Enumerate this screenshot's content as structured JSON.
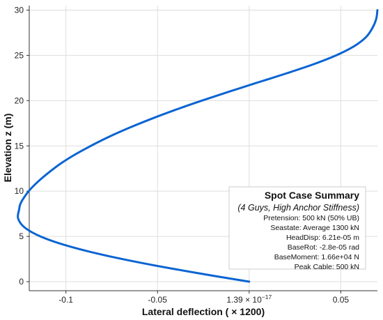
{
  "chart_data": {
    "type": "line",
    "xlabel": "Lateral deflection ( ×  1200)",
    "ylabel": "Elevation z (m)",
    "xlim": [
      -0.12,
      0.07
    ],
    "ylim": [
      -1,
      30.5
    ],
    "x_ticks": [
      {
        "value": -0.1,
        "label": "-0.1"
      },
      {
        "value": -0.05,
        "label": "-0.05"
      },
      {
        "value": 0.0,
        "label": "1.39 × 10",
        "exp": "−17"
      },
      {
        "value": 0.05,
        "label": "0.05"
      }
    ],
    "y_ticks": [
      {
        "value": 0,
        "label": "0"
      },
      {
        "value": 5,
        "label": "5"
      },
      {
        "value": 10,
        "label": "10"
      },
      {
        "value": 15,
        "label": "15"
      },
      {
        "value": 20,
        "label": "20"
      },
      {
        "value": 25,
        "label": "25"
      },
      {
        "value": 30,
        "label": "30"
      }
    ],
    "grid": true,
    "series": [
      {
        "color": "#0a64d2",
        "points": [
          {
            "x": 0.0,
            "y": 0
          },
          {
            "x": -0.0297,
            "y": 1
          },
          {
            "x": -0.0569,
            "y": 2
          },
          {
            "x": -0.0806,
            "y": 3
          },
          {
            "x": -0.0998,
            "y": 4
          },
          {
            "x": -0.1139,
            "y": 5
          },
          {
            "x": -0.1226,
            "y": 6
          },
          {
            "x": -0.1261,
            "y": 7
          },
          {
            "x": -0.1255,
            "y": 8
          },
          {
            "x": -0.125,
            "y": 8.5
          },
          {
            "x": -0.1238,
            "y": 9
          },
          {
            "x": -0.1203,
            "y": 10
          },
          {
            "x": -0.1155,
            "y": 11
          },
          {
            "x": -0.1097,
            "y": 12
          },
          {
            "x": -0.1032,
            "y": 13
          },
          {
            "x": -0.0954,
            "y": 14
          },
          {
            "x": -0.0864,
            "y": 15
          },
          {
            "x": -0.0765,
            "y": 16
          },
          {
            "x": -0.0654,
            "y": 17
          },
          {
            "x": -0.0532,
            "y": 18
          },
          {
            "x": -0.04,
            "y": 19
          },
          {
            "x": -0.0258,
            "y": 20
          },
          {
            "x": -0.0108,
            "y": 21
          },
          {
            "x": 0.0046,
            "y": 22
          },
          {
            "x": 0.0202,
            "y": 23
          },
          {
            "x": 0.0349,
            "y": 24
          },
          {
            "x": 0.0475,
            "y": 25
          },
          {
            "x": 0.0572,
            "y": 26
          },
          {
            "x": 0.0637,
            "y": 27
          },
          {
            "x": 0.0672,
            "y": 28
          },
          {
            "x": 0.0693,
            "y": 29
          },
          {
            "x": 0.07,
            "y": 30
          }
        ]
      }
    ],
    "legend": {
      "placement": "lower-right",
      "title": "Spot Case Summary",
      "subtitle": "(4 Guys, High Anchor Stiffness)",
      "lines": [
        "Pretension: 500 kN (50% UB)",
        "Seastate: Average 1300 kN",
        "HeadDisp: 6.21e-05 m",
        "BaseRot: -2.8e-05 rad",
        "BaseMoment: 1.66e+04 N",
        "Peak Cable: 500 kN"
      ]
    }
  }
}
